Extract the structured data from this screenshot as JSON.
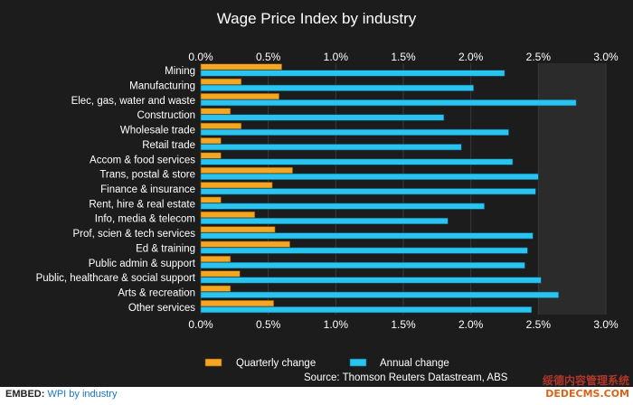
{
  "chart_data": {
    "type": "bar",
    "orientation": "horizontal",
    "title": "Wage Price Index by industry",
    "categories": [
      "Mining",
      "Manufacturing",
      "Elec, gas, water and waste",
      "Construction",
      "Wholesale trade",
      "Retail trade",
      "Accom & food services",
      "Trans, postal & store",
      "Finance & insurance",
      "Rent, hire & real estate",
      "Info, media & telecom",
      "Prof, scien & tech services",
      "Ed & training",
      "Public admin & support",
      "Public, healthcare & social support",
      "Arts & recreation",
      "Other services"
    ],
    "series": [
      {
        "name": "Quarterly change",
        "color": "#f5a623",
        "values": [
          0.6,
          0.3,
          0.58,
          0.22,
          0.3,
          0.15,
          0.15,
          0.68,
          0.53,
          0.15,
          0.4,
          0.55,
          0.66,
          0.22,
          0.29,
          0.22,
          0.54
        ]
      },
      {
        "name": "Annual change",
        "color": "#29c4f0",
        "values": [
          2.25,
          2.02,
          2.78,
          1.8,
          2.28,
          1.93,
          2.31,
          2.5,
          2.48,
          2.1,
          1.83,
          2.46,
          2.42,
          2.4,
          2.52,
          2.65,
          2.45
        ]
      }
    ],
    "xlim": [
      0,
      3
    ],
    "tick_values": [
      0,
      0.5,
      1,
      1.5,
      2,
      2.5,
      3
    ],
    "tick_labels": [
      "0.0%",
      "0.5%",
      "1.0%",
      "1.5%",
      "2.0%",
      "2.5%",
      "3.0%"
    ],
    "grid": true,
    "legend_position": "bottom",
    "source": "Source: Thomson Reuters Datastream, ABS"
  },
  "embed": {
    "label": "EMBED:",
    "link_text": "WPI by industry"
  },
  "watermark": {
    "line1": "绥德内容管理系统",
    "line2": "DEDECMS.COM"
  },
  "colors": {
    "background": "#1c1c1c",
    "plot_background": "#1c1c1c",
    "shaded_band": "#2b2b2b",
    "text": "#ffffff",
    "grid": "#3a3a3a"
  }
}
